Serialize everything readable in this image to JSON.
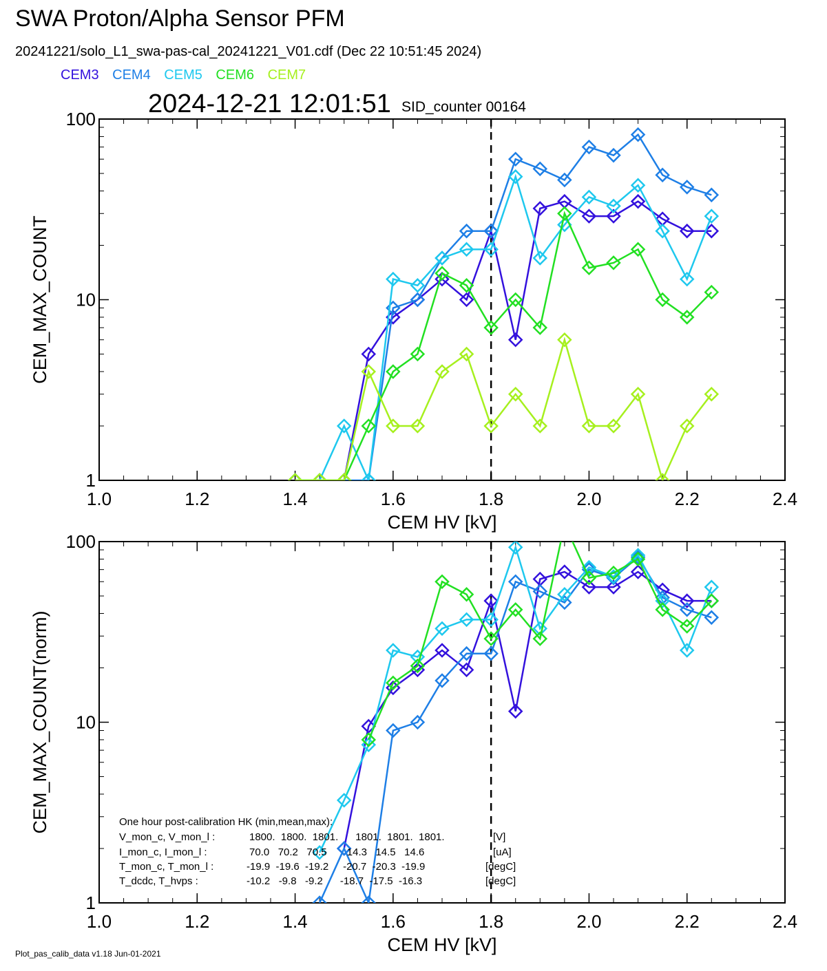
{
  "header": {
    "title": "SWA Proton/Alpha Sensor PFM",
    "file_line": "20241221/solo_L1_swa-pas-cal_20241221_V01.cdf  (Dec 22 10:51:45 2024)",
    "timestamp": "2024-12-21 12:01:51",
    "sid_counter": "SID_counter 00164"
  },
  "legend": [
    {
      "name": "CEM3",
      "color": "#3311dd"
    },
    {
      "name": "CEM4",
      "color": "#1e7fe6"
    },
    {
      "name": "CEM5",
      "color": "#1ec8ee"
    },
    {
      "name": "CEM6",
      "color": "#22e022"
    },
    {
      "name": "CEM7",
      "color": "#a6f01e"
    }
  ],
  "footer": "Plot_pas_calib_data v1.18 Jun-01-2021",
  "hk": {
    "title": "One hour post-calibration HK (min,mean,max):",
    "rows": [
      {
        "label": "V_mon_c, V_mon_l :",
        "values": "1800.  1800.  1801.      1801.  1801.  1801.",
        "unit": "[V]"
      },
      {
        "label": "I_mon_c,  I_mon_l :",
        "values": "70.0   70.2   70.5       14.3   14.5   14.6",
        "unit": "[uA]"
      },
      {
        "label": "T_mon_c, T_mon_l :",
        "values": "-19.9  -19.6  -19.2     -20.7  -20.3  -19.9",
        "unit": "[degC]"
      },
      {
        "label": "T_dcdc,    T_hvps :",
        "values": "-10.2   -9.8   -9.2      -18.7  -17.5  -16.3",
        "unit": "[degC]"
      }
    ]
  },
  "chart_data": [
    {
      "type": "line",
      "xlabel": "CEM HV [kV]",
      "ylabel": "CEM_MAX_COUNT",
      "xlim": [
        1.0,
        2.4
      ],
      "ylim": [
        1,
        100
      ],
      "yscale": "log",
      "x_ticks": [
        "1.0",
        "1.2",
        "1.4",
        "1.6",
        "1.8",
        "2.0",
        "2.2",
        "2.4"
      ],
      "y_ticks": [
        "1",
        "10",
        "100"
      ],
      "marker": "diamond",
      "vline_x": 1.8,
      "x": [
        1.4,
        1.45,
        1.5,
        1.55,
        1.6,
        1.65,
        1.7,
        1.75,
        1.8,
        1.85,
        1.9,
        1.95,
        2.0,
        2.05,
        2.1,
        2.15,
        2.2,
        2.25
      ],
      "series": [
        {
          "name": "CEM3",
          "color": "#3311dd",
          "values": [
            1,
            1,
            1,
            5,
            8,
            10,
            13,
            10,
            24,
            6,
            32,
            35,
            29,
            29,
            35,
            28,
            24,
            24
          ]
        },
        {
          "name": "CEM4",
          "color": "#1e7fe6",
          "values": [
            1,
            1,
            1,
            1,
            9,
            10,
            17,
            24,
            24,
            60,
            53,
            46,
            70,
            63,
            82,
            49,
            42,
            38
          ]
        },
        {
          "name": "CEM5",
          "color": "#1ec8ee",
          "values": [
            1,
            1,
            2,
            1,
            13,
            12,
            17,
            19,
            19,
            48,
            17,
            26,
            37,
            33,
            43,
            24,
            13,
            29
          ]
        },
        {
          "name": "CEM6",
          "color": "#22e022",
          "values": [
            1,
            1,
            1,
            2,
            4,
            5,
            14,
            12,
            7,
            10,
            7,
            30,
            15,
            16,
            19,
            10,
            8,
            11
          ]
        },
        {
          "name": "CEM7",
          "color": "#a6f01e",
          "values": [
            1,
            1,
            1,
            4,
            2,
            2,
            4,
            5,
            2,
            3,
            2,
            6,
            2,
            2,
            3,
            1,
            2,
            3
          ]
        }
      ]
    },
    {
      "type": "line",
      "xlabel": "CEM HV [kV]",
      "ylabel": "CEM_MAX_COUNT(norm)",
      "xlim": [
        1.0,
        2.4
      ],
      "ylim": [
        1,
        100
      ],
      "yscale": "log",
      "x_ticks": [
        "1.0",
        "1.2",
        "1.4",
        "1.6",
        "1.8",
        "2.0",
        "2.2",
        "2.4"
      ],
      "y_ticks": [
        "1",
        "10",
        "100"
      ],
      "marker": "diamond",
      "vline_x": 1.8,
      "x": [
        1.4,
        1.45,
        1.5,
        1.55,
        1.6,
        1.65,
        1.7,
        1.75,
        1.8,
        1.85,
        1.9,
        1.95,
        2.0,
        2.05,
        2.1,
        2.15,
        2.2,
        2.25
      ],
      "series": [
        {
          "name": "CEM3",
          "color": "#3311dd",
          "values": [
            null,
            null,
            2,
            9.5,
            15.5,
            19.5,
            25,
            19.5,
            47,
            11.5,
            62,
            68,
            56,
            56,
            68,
            54,
            47,
            47
          ]
        },
        {
          "name": "CEM4",
          "color": "#1e7fe6",
          "values": [
            null,
            1,
            2,
            1,
            9,
            10,
            17,
            24,
            24,
            60,
            53,
            46,
            70,
            63,
            82,
            49,
            42,
            38
          ]
        },
        {
          "name": "CEM5",
          "color": "#1ec8ee",
          "values": [
            null,
            1.9,
            3.7,
            7.5,
            25,
            23,
            33,
            37,
            37,
            93,
            33,
            51,
            72,
            64,
            84,
            47,
            25,
            56
          ]
        },
        {
          "name": "CEM6",
          "color": "#22e022",
          "values": [
            null,
            null,
            null,
            8,
            16.5,
            20.5,
            60,
            51,
            29,
            42,
            29,
            125,
            63,
            67,
            80,
            42,
            34,
            47
          ]
        }
      ]
    }
  ]
}
